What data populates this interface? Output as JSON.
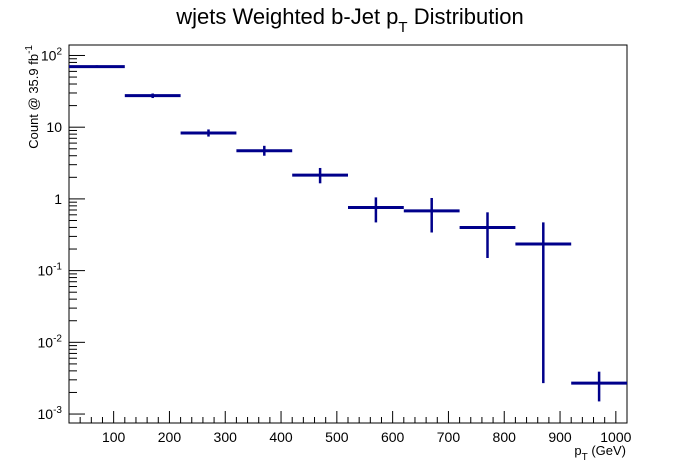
{
  "chart_data": {
    "type": "scatter",
    "title_main": "wjets Weighted b-Jet p",
    "title_sub": "T",
    "title_tail": " Distribution",
    "xlabel_main": "p",
    "xlabel_sub": "T",
    "xlabel_tail": " (GeV)",
    "ylabel_main": "Count @ 35.9 fb",
    "ylabel_sup": "-1",
    "xlim": [
      20,
      1020
    ],
    "ylim": [
      0.00075,
      140
    ],
    "yscale": "log",
    "grid": false,
    "legend": "none",
    "color": "#00008b",
    "x_ticks": [
      100,
      200,
      300,
      400,
      500,
      600,
      700,
      800,
      900,
      1000
    ],
    "x_tick_labels": [
      "100",
      "200",
      "300",
      "400",
      "500",
      "600",
      "700",
      "800",
      "900",
      "1000"
    ],
    "y_ticks": [
      {
        "value": 0.001,
        "base": "10",
        "exp": "-3"
      },
      {
        "value": 0.01,
        "base": "10",
        "exp": "-2"
      },
      {
        "value": 0.1,
        "base": "10",
        "exp": "-1"
      },
      {
        "value": 1,
        "base": "1",
        "exp": ""
      },
      {
        "value": 10,
        "base": "10",
        "exp": ""
      },
      {
        "value": 100,
        "base": "10",
        "exp": "2"
      }
    ],
    "points": [
      {
        "x_low": 20,
        "x_high": 120,
        "y": 70,
        "y_low": 67,
        "y_high": 73
      },
      {
        "x_low": 120,
        "x_high": 220,
        "y": 27.5,
        "y_low": 25.5,
        "y_high": 29.5
      },
      {
        "x_low": 220,
        "x_high": 320,
        "y": 8.3,
        "y_low": 7.4,
        "y_high": 9.3
      },
      {
        "x_low": 320,
        "x_high": 420,
        "y": 4.7,
        "y_low": 4.0,
        "y_high": 5.5
      },
      {
        "x_low": 420,
        "x_high": 520,
        "y": 2.15,
        "y_low": 1.65,
        "y_high": 2.7
      },
      {
        "x_low": 520,
        "x_high": 620,
        "y": 0.76,
        "y_low": 0.47,
        "y_high": 1.05
      },
      {
        "x_low": 620,
        "x_high": 720,
        "y": 0.68,
        "y_low": 0.34,
        "y_high": 1.03
      },
      {
        "x_low": 720,
        "x_high": 820,
        "y": 0.4,
        "y_low": 0.15,
        "y_high": 0.65
      },
      {
        "x_low": 820,
        "x_high": 920,
        "y": 0.235,
        "y_low": 0.0027,
        "y_high": 0.47
      },
      {
        "x_low": 920,
        "x_high": 1020,
        "y": 0.0027,
        "y_low": 0.0015,
        "y_high": 0.0039
      }
    ]
  }
}
